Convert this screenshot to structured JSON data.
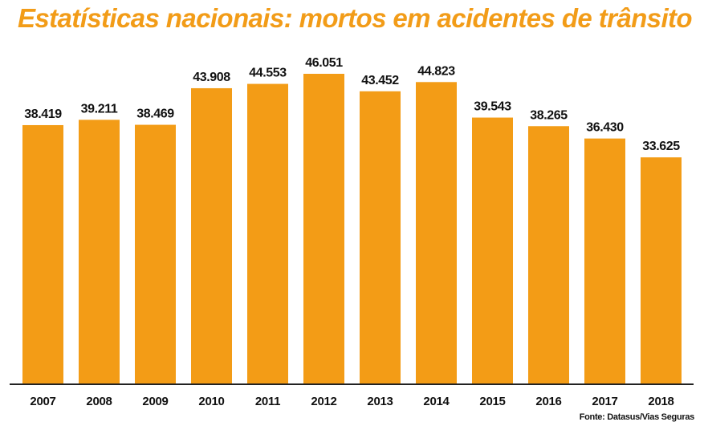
{
  "title": "Estatísticas nacionais: mortos em acidentes de trânsito",
  "source": "Fonte: Datasus/Vias Seguras",
  "colors": {
    "title": "#f29c18",
    "bar": "#f39c16",
    "axis": "#222222",
    "text": "#111111"
  },
  "chart_data": {
    "type": "bar",
    "categories": [
      "2007",
      "2008",
      "2009",
      "2010",
      "2011",
      "2012",
      "2013",
      "2014",
      "2015",
      "2016",
      "2017",
      "2018"
    ],
    "values": [
      38419,
      39211,
      38469,
      43908,
      44553,
      46051,
      43452,
      44823,
      39543,
      38265,
      36430,
      33625
    ],
    "value_labels": [
      "38.419",
      "39.211",
      "38.469",
      "43.908",
      "44.553",
      "46.051",
      "43.452",
      "44.823",
      "39.543",
      "38.265",
      "36.430",
      "33.625"
    ],
    "title": "Estatísticas nacionais: mortos em acidentes de trânsito",
    "xlabel": "",
    "ylabel": "",
    "ylim": [
      0,
      46051
    ],
    "grid": false,
    "legend": "none"
  }
}
